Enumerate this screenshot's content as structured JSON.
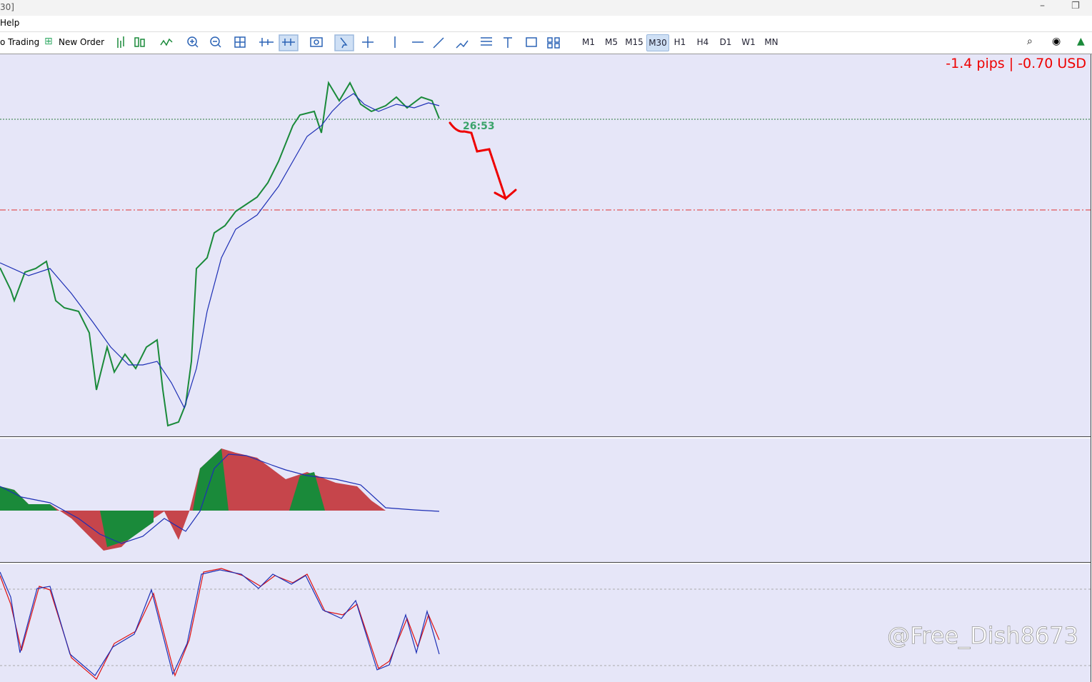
{
  "window": {
    "title": "30]"
  },
  "menu": [
    "Help"
  ],
  "toolbar": {
    "algo_trading": "o Trading",
    "new_order": "New Order",
    "timeframes": [
      "M1",
      "M5",
      "M15",
      "M30",
      "H1",
      "H4",
      "D1",
      "W1",
      "MN"
    ],
    "active_timeframe": "M30"
  },
  "chart": {
    "profit": "-1.4 pips | -0.70 USD",
    "countdown": "26:53"
  },
  "watermark": "@Free_Dish8673"
}
